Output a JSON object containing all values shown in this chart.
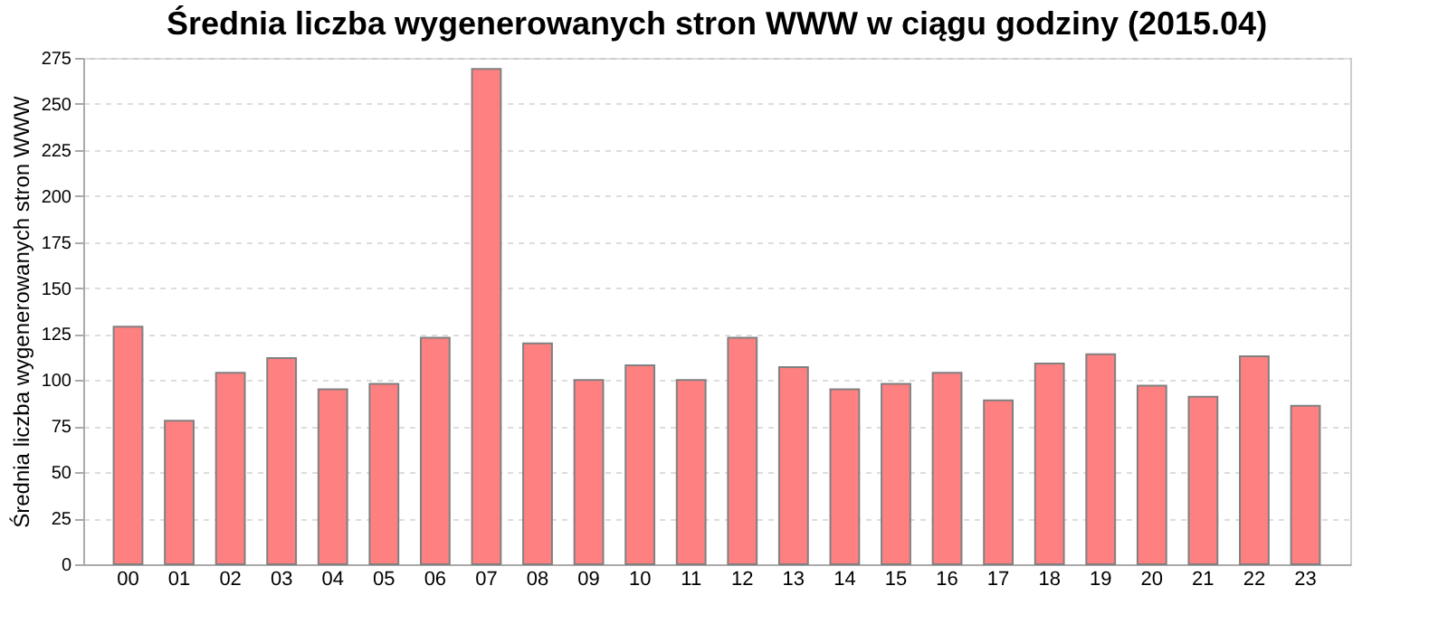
{
  "chart_data": {
    "type": "bar",
    "title": "Średnia liczba wygenerowanych stron WWW w ciągu godziny (2015.04)",
    "ylabel": "Średnia liczba wygenerowanych stron WWW",
    "categories": [
      "00",
      "01",
      "02",
      "03",
      "04",
      "05",
      "06",
      "07",
      "08",
      "09",
      "10",
      "11",
      "12",
      "13",
      "14",
      "15",
      "16",
      "17",
      "18",
      "19",
      "20",
      "21",
      "22",
      "23"
    ],
    "values": [
      129,
      78,
      104,
      112,
      95,
      98,
      123,
      269,
      120,
      100,
      108,
      100,
      123,
      107,
      95,
      98,
      104,
      89,
      109,
      114,
      97,
      91,
      113,
      86
    ],
    "color": "#ff8080",
    "ylim": [
      0,
      275
    ],
    "yticks": [
      0,
      25,
      50,
      75,
      100,
      125,
      150,
      175,
      200,
      225,
      250,
      275
    ],
    "grid": "y"
  }
}
